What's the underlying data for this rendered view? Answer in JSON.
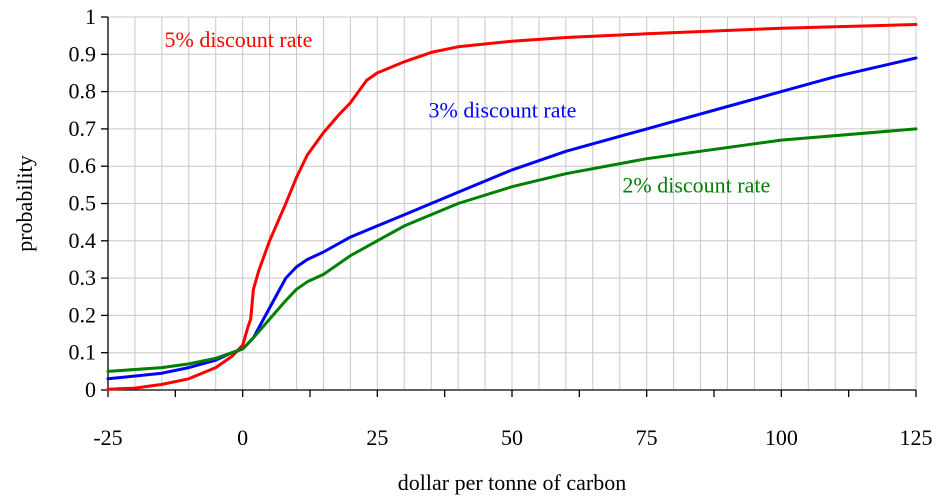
{
  "chart_data": {
    "type": "line",
    "title": "",
    "xlabel": "dollar per tonne of carbon",
    "ylabel": "probability",
    "xlim": [
      -25,
      125
    ],
    "ylim": [
      0,
      1
    ],
    "x_ticks": [
      -25,
      0,
      25,
      50,
      75,
      100,
      125
    ],
    "x_tick_labels": [
      "-25",
      "0",
      "25",
      "50",
      "75",
      "100",
      "125"
    ],
    "y_ticks": [
      0,
      0.1,
      0.2,
      0.3,
      0.4,
      0.5,
      0.6,
      0.7,
      0.8,
      0.9,
      1
    ],
    "y_tick_labels": [
      "0",
      "0.1",
      "0.2",
      "0.3",
      "0.4",
      "0.5",
      "0.6",
      "0.7",
      "0.8",
      "0.9",
      "1"
    ],
    "grid": true,
    "legend": "none (series labeled directly on plot)",
    "series": [
      {
        "name": "5% discount rate",
        "color": "#ff0000",
        "x": [
          -25,
          -20,
          -15,
          -10,
          -5,
          -2,
          0,
          1,
          1.5,
          2,
          3,
          5,
          8,
          10,
          12,
          15,
          18,
          20,
          23,
          25,
          30,
          35,
          40,
          50,
          60,
          75,
          100,
          125
        ],
        "y": [
          0.002,
          0.005,
          0.015,
          0.03,
          0.06,
          0.09,
          0.12,
          0.17,
          0.19,
          0.27,
          0.32,
          0.4,
          0.5,
          0.57,
          0.63,
          0.69,
          0.74,
          0.77,
          0.83,
          0.85,
          0.88,
          0.905,
          0.92,
          0.935,
          0.945,
          0.955,
          0.97,
          0.98
        ]
      },
      {
        "name": "3% discount rate",
        "color": "#0000ff",
        "x": [
          -25,
          -15,
          -10,
          -5,
          -2,
          0,
          2,
          5,
          8,
          10,
          12,
          15,
          20,
          25,
          30,
          40,
          50,
          60,
          75,
          90,
          100,
          110,
          125
        ],
        "y": [
          0.03,
          0.045,
          0.06,
          0.08,
          0.1,
          0.11,
          0.14,
          0.22,
          0.3,
          0.33,
          0.35,
          0.37,
          0.41,
          0.44,
          0.47,
          0.53,
          0.59,
          0.64,
          0.7,
          0.76,
          0.8,
          0.84,
          0.89
        ]
      },
      {
        "name": "2% discount rate",
        "color": "#008000",
        "x": [
          -25,
          -15,
          -10,
          -5,
          -2,
          0,
          2,
          5,
          8,
          10,
          12,
          15,
          20,
          25,
          30,
          40,
          50,
          60,
          75,
          100,
          125
        ],
        "y": [
          0.05,
          0.06,
          0.07,
          0.085,
          0.1,
          0.11,
          0.14,
          0.19,
          0.24,
          0.27,
          0.29,
          0.31,
          0.36,
          0.4,
          0.44,
          0.5,
          0.545,
          0.58,
          0.62,
          0.67,
          0.7
        ]
      }
    ]
  }
}
